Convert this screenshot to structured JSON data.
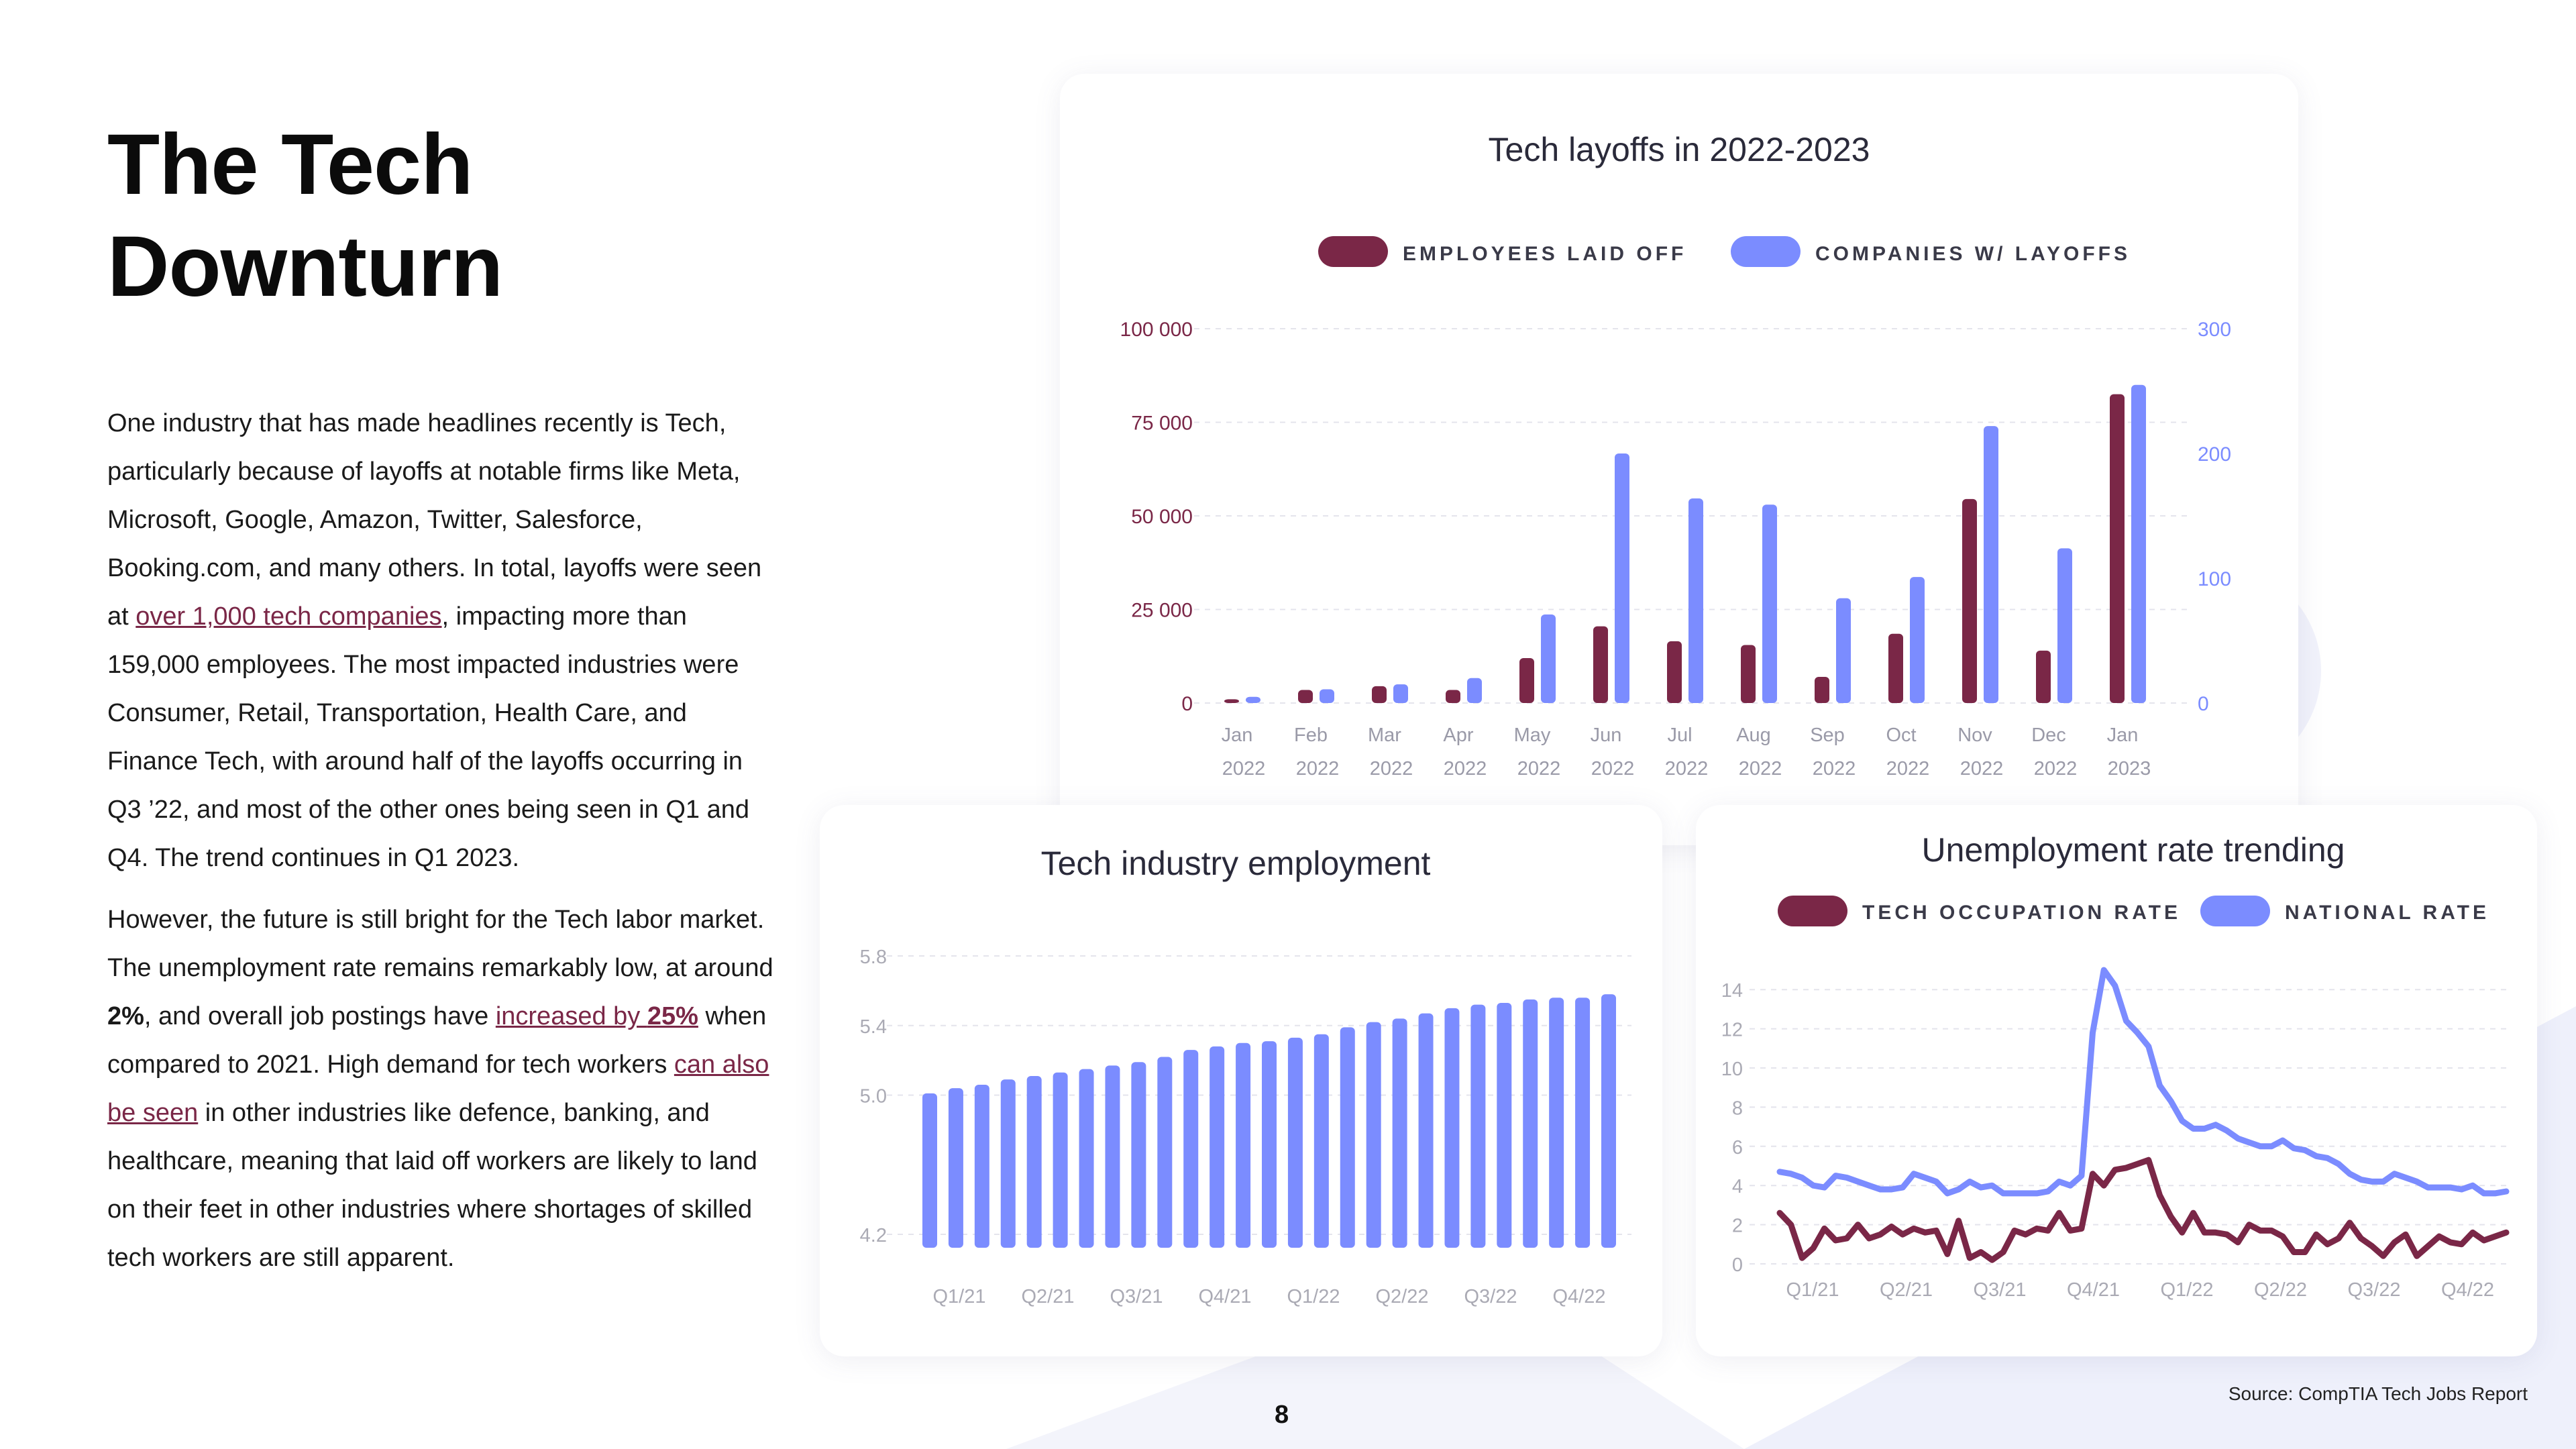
{
  "title_line1": "The Tech",
  "title_line2": "Downturn",
  "para1": {
    "t1": "One industry that has made headlines recently is Tech, particularly because of layoffs at notable firms like Meta, Microsoft, Google, Amazon, Twitter, Salesforce, Booking.com, and many others. In total, layoffs were seen at ",
    "link1": "over 1,000 tech companies",
    "t2": ", impacting more than 159,000 employees. The most impacted industries were Consumer, Retail, Transportation, Health Care, and Finance Tech, with around half of the layoffs occurring in Q3 ’22, and most of the other ones being seen in Q1 and Q4. The trend continues in Q1 2023."
  },
  "para2": {
    "t1": "However, the future is still bright for the Tech labor market. The unemployment rate remains remarkably low, at around ",
    "bold": "2%",
    "t2": ", and overall job postings have ",
    "link1_pre": "increased by ",
    "link1_bold": "25%",
    "t3": " when compared to 2021. High demand for tech workers ",
    "link2": "can also be seen",
    "t4": " in other industries like defence, banking, and healthcare, meaning that laid off workers are likely to land on their feet in other industries where shortages of skilled tech workers are still apparent."
  },
  "page_number": "8",
  "source": "Source: CompTIA Tech Jobs Report",
  "colors": {
    "maroon": "#7a2747",
    "blue": "#7b8cff",
    "grid": "#e4e4ec",
    "tick_gray": "#9a9aa8"
  },
  "chart_data": [
    {
      "type": "bar",
      "title": "Tech layoffs in 2022-2023",
      "categories": [
        "Jan 2022",
        "Feb 2022",
        "Mar 2022",
        "Apr 2022",
        "May 2022",
        "Jun 2022",
        "Jul 2022",
        "Aug 2022",
        "Sep 2022",
        "Oct 2022",
        "Nov 2022",
        "Dec 2022",
        "Jan 2023"
      ],
      "cat_line1": [
        "Jan",
        "Feb",
        "Mar",
        "Apr",
        "May",
        "Jun",
        "Jul",
        "Aug",
        "Sep",
        "Oct",
        "Nov",
        "Dec",
        "Jan"
      ],
      "cat_line2": [
        "2022",
        "2022",
        "2022",
        "2022",
        "2022",
        "2022",
        "2022",
        "2022",
        "2022",
        "2022",
        "2022",
        "2022",
        "2023"
      ],
      "series": [
        {
          "name": "EMPLOYEES LAID OFF",
          "axis": "left",
          "color": "#7a2747",
          "values": [
            1000,
            3500,
            4500,
            3500,
            12000,
            20500,
            16500,
            15500,
            7000,
            18500,
            54500,
            14000,
            82500
          ]
        },
        {
          "name": "COMPANIES W/ LAYOFFS",
          "axis": "right",
          "color": "#7b8cff",
          "values": [
            5,
            11,
            15,
            20,
            71,
            200,
            164,
            159,
            84,
            101,
            222,
            124,
            255
          ]
        }
      ],
      "ylim_left": [
        0,
        100000
      ],
      "yticks_left": [
        "0",
        "25 000",
        "50 000",
        "75 000",
        "100 000"
      ],
      "ylim_right": [
        0,
        300
      ],
      "yticks_right": [
        "0",
        "100",
        "200",
        "300"
      ],
      "legend": "top-center",
      "grid": true
    },
    {
      "type": "bar",
      "title": "Tech industry employment",
      "values": [
        5.01,
        5.04,
        5.06,
        5.09,
        5.11,
        5.13,
        5.15,
        5.17,
        5.19,
        5.22,
        5.26,
        5.28,
        5.3,
        5.31,
        5.33,
        5.35,
        5.39,
        5.42,
        5.44,
        5.47,
        5.5,
        5.52,
        5.53,
        5.55,
        5.56,
        5.56,
        5.58
      ],
      "xticks": [
        "Q1/21",
        "Q2/21",
        "Q3/21",
        "Q4/21",
        "Q1/22",
        "Q2/22",
        "Q3/22",
        "Q4/22"
      ],
      "ylim": [
        4.2,
        5.8
      ],
      "yticks": [
        "4.2",
        "5.0",
        "5.4",
        "5.8"
      ],
      "color": "#7b8cff",
      "grid": true
    },
    {
      "type": "line",
      "title": "Unemployment rate trending",
      "xticks": [
        "Q1/21",
        "Q2/21",
        "Q3/21",
        "Q4/21",
        "Q1/22",
        "Q2/22",
        "Q3/22",
        "Q4/22"
      ],
      "ylim": [
        0,
        15
      ],
      "yticks": [
        "0",
        "2",
        "4",
        "6",
        "8",
        "10",
        "12",
        "14"
      ],
      "series": [
        {
          "name": "TECH OCCUPATION RATE",
          "color": "#7a2747",
          "values": [
            2.6,
            2.0,
            0.3,
            0.8,
            1.8,
            1.2,
            1.3,
            2.0,
            1.3,
            1.5,
            1.9,
            1.5,
            1.8,
            1.6,
            1.7,
            0.5,
            2.2,
            0.3,
            0.6,
            0.2,
            0.6,
            1.7,
            1.5,
            1.8,
            1.7,
            2.6,
            1.7,
            1.8,
            4.6,
            4.0,
            4.8,
            4.9,
            5.1,
            5.3,
            3.5,
            2.4,
            1.6,
            2.6,
            1.6,
            1.6,
            1.5,
            1.1,
            2.0,
            1.7,
            1.7,
            1.4,
            0.6,
            0.6,
            1.5,
            1.0,
            1.3,
            2.1,
            1.3,
            0.9,
            0.4,
            1.1,
            1.5,
            0.4,
            0.9,
            1.4,
            1.1,
            1.0,
            1.6,
            1.2,
            1.4,
            1.6
          ]
        },
        {
          "name": "NATIONAL RATE",
          "color": "#7b8cff",
          "values": [
            4.7,
            4.6,
            4.4,
            4.0,
            3.9,
            4.5,
            4.4,
            4.2,
            4.0,
            3.8,
            3.8,
            3.9,
            4.6,
            4.4,
            4.2,
            3.6,
            3.8,
            4.2,
            3.9,
            4.0,
            3.6,
            3.6,
            3.6,
            3.6,
            3.7,
            4.2,
            4.0,
            4.5,
            11.8,
            15.0,
            14.2,
            12.4,
            11.8,
            11.1,
            9.1,
            8.3,
            7.3,
            6.9,
            6.9,
            7.1,
            6.8,
            6.4,
            6.2,
            6.0,
            6.0,
            6.3,
            5.9,
            5.8,
            5.5,
            5.4,
            5.1,
            4.6,
            4.3,
            4.2,
            4.2,
            4.6,
            4.4,
            4.2,
            3.9,
            3.9,
            3.9,
            3.8,
            4.0,
            3.6,
            3.6,
            3.7
          ]
        }
      ],
      "legend": "top",
      "grid": true
    }
  ]
}
